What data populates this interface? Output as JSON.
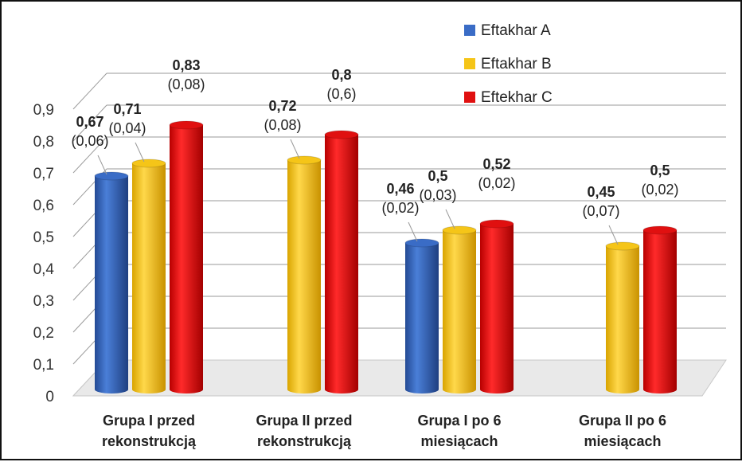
{
  "chart_data": {
    "type": "bar",
    "categories": [
      [
        "Grupa I przed",
        "rekonstrukcją"
      ],
      [
        "Grupa II przed",
        "rekonstrukcją"
      ],
      [
        "Grupa I po 6",
        "miesiącach"
      ],
      [
        "Grupa II po 6",
        "miesiącach"
      ]
    ],
    "series": [
      {
        "name": "Eftakhar A",
        "color": "#3a6cc6",
        "values": [
          0.67,
          null,
          0.46,
          null
        ],
        "labels": [
          [
            "0,67",
            "(0,06)"
          ],
          null,
          [
            "0,46",
            "(0,02)"
          ],
          null
        ]
      },
      {
        "name": "Eftakhar B",
        "color": "#f5c518",
        "values": [
          0.71,
          0.72,
          0.5,
          0.45
        ],
        "labels": [
          [
            "0,71",
            "(0,04)"
          ],
          [
            "0,72",
            "(0,08)"
          ],
          [
            "0,5",
            "(0,03)"
          ],
          [
            "0,45",
            "(0,07)"
          ]
        ]
      },
      {
        "name": "Eftekhar C",
        "color": "#e01010",
        "values": [
          0.83,
          0.8,
          0.52,
          0.5
        ],
        "labels": [
          [
            "0,83",
            "(0,08)"
          ],
          [
            "0,8",
            "(0,6)"
          ],
          [
            "0,52",
            "(0,02)"
          ],
          [
            "0,5",
            "(0,02)"
          ]
        ]
      }
    ],
    "yticks": [
      "0",
      "0,1",
      "0,2",
      "0,3",
      "0,4",
      "0,5",
      "0,6",
      "0,7",
      "0,8",
      "0,9"
    ],
    "ylim": [
      0,
      0.9
    ],
    "grid": true,
    "legend_position": "top-right",
    "style": "3d-cylinder"
  }
}
